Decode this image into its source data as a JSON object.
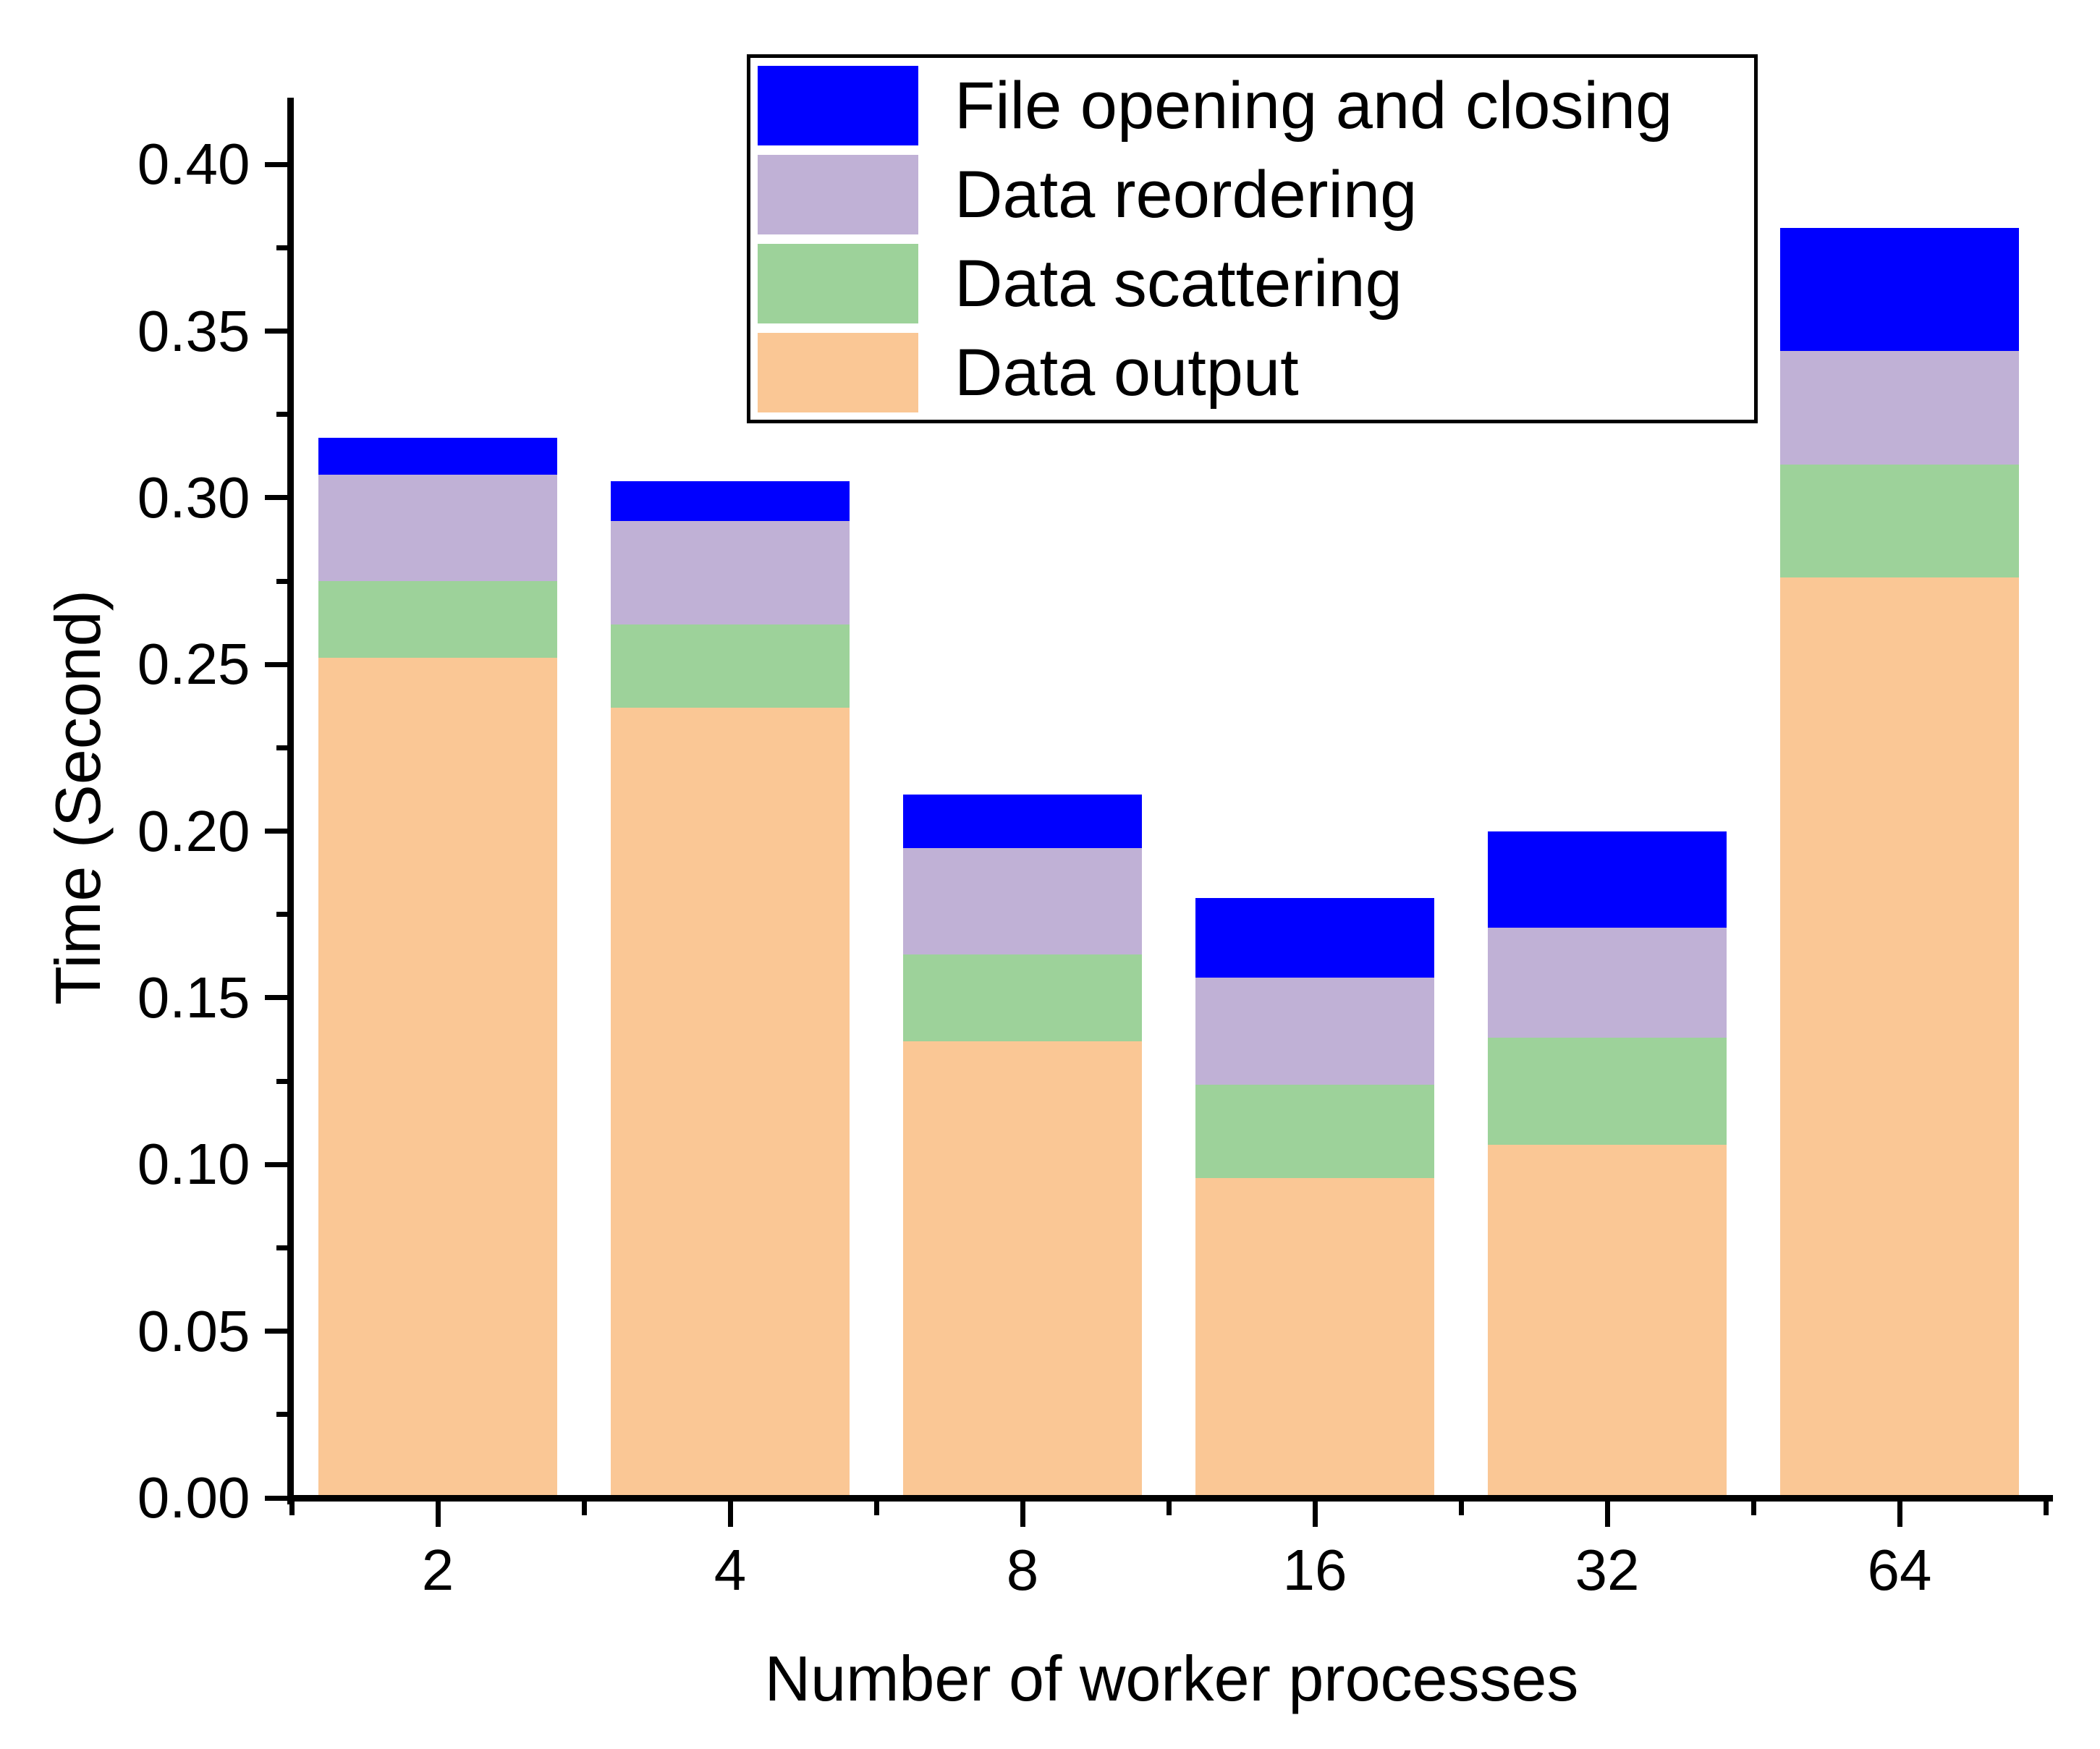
{
  "chart_data": {
    "type": "bar",
    "stacked": true,
    "title": "",
    "xlabel": "Number of worker processes",
    "ylabel": "Time (Second)",
    "categories": [
      "2",
      "4",
      "8",
      "16",
      "32",
      "64"
    ],
    "series": [
      {
        "name": "Data output",
        "color": "#FAC795",
        "values": [
          0.252,
          0.237,
          0.137,
          0.096,
          0.106,
          0.276
        ]
      },
      {
        "name": "Data scattering",
        "color": "#9DD29A",
        "values": [
          0.023,
          0.025,
          0.026,
          0.028,
          0.032,
          0.034
        ]
      },
      {
        "name": "Data reordering",
        "color": "#C0B1D6",
        "values": [
          0.032,
          0.031,
          0.032,
          0.032,
          0.033,
          0.034
        ]
      },
      {
        "name": "File opening and closing",
        "color": "#0000FF",
        "values": [
          0.011,
          0.012,
          0.016,
          0.024,
          0.029,
          0.037
        ]
      }
    ],
    "bar_totals": [
      0.318,
      0.305,
      0.211,
      0.18,
      0.2,
      0.381
    ],
    "ylim": [
      0,
      0.42
    ],
    "y_major_tick_step": 0.05,
    "y_minor_tick_step": 0.025,
    "y_tick_labels": [
      "0.00",
      "0.05",
      "0.10",
      "0.15",
      "0.20",
      "0.25",
      "0.30",
      "0.35",
      "0.40"
    ],
    "grid": false,
    "legend": {
      "position": "top-center-inside",
      "entries_top_to_bottom": [
        "File opening and closing",
        "Data reordering",
        "Data scattering",
        "Data output"
      ]
    }
  }
}
